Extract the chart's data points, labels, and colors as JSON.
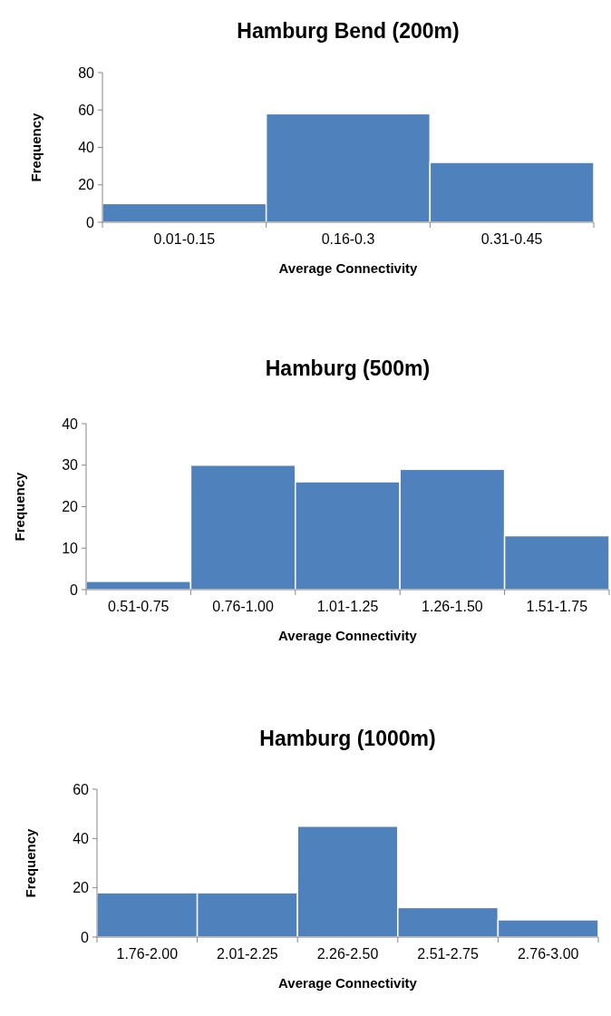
{
  "chart_data": [
    {
      "type": "bar",
      "title": "Hamburg Bend (200m)",
      "xlabel": "Average Connectivity",
      "ylabel": "Frequency",
      "categories": [
        "0.01-0.15",
        "0.16-0.3",
        "0.31-0.45"
      ],
      "values": [
        10,
        58,
        32
      ],
      "color": "#4f81bd",
      "ylim": [
        0,
        80
      ],
      "yticks": [
        0,
        20,
        40,
        60,
        80
      ]
    },
    {
      "type": "bar",
      "title": "Hamburg (500m)",
      "xlabel": "Average Connectivity",
      "ylabel": "Frequency",
      "categories": [
        "0.51-0.75",
        "0.76-1.00",
        "1.01-1.25",
        "1.26-1.50",
        "1.51-1.75"
      ],
      "values": [
        2,
        30,
        26,
        29,
        13
      ],
      "color": "#4f81bd",
      "ylim": [
        0,
        40
      ],
      "yticks": [
        0,
        10,
        20,
        30,
        40
      ]
    },
    {
      "type": "bar",
      "title": "Hamburg (1000m)",
      "xlabel": "Average Connectivity",
      "ylabel": "Frequency",
      "categories": [
        "1.76-2.00",
        "2.01-2.25",
        "2.26-2.50",
        "2.51-2.75",
        "2.76-3.00"
      ],
      "values": [
        18,
        18,
        45,
        12,
        7
      ],
      "color": "#4f81bd",
      "ylim": [
        0,
        60
      ],
      "yticks": [
        0,
        20,
        40,
        60
      ]
    }
  ]
}
